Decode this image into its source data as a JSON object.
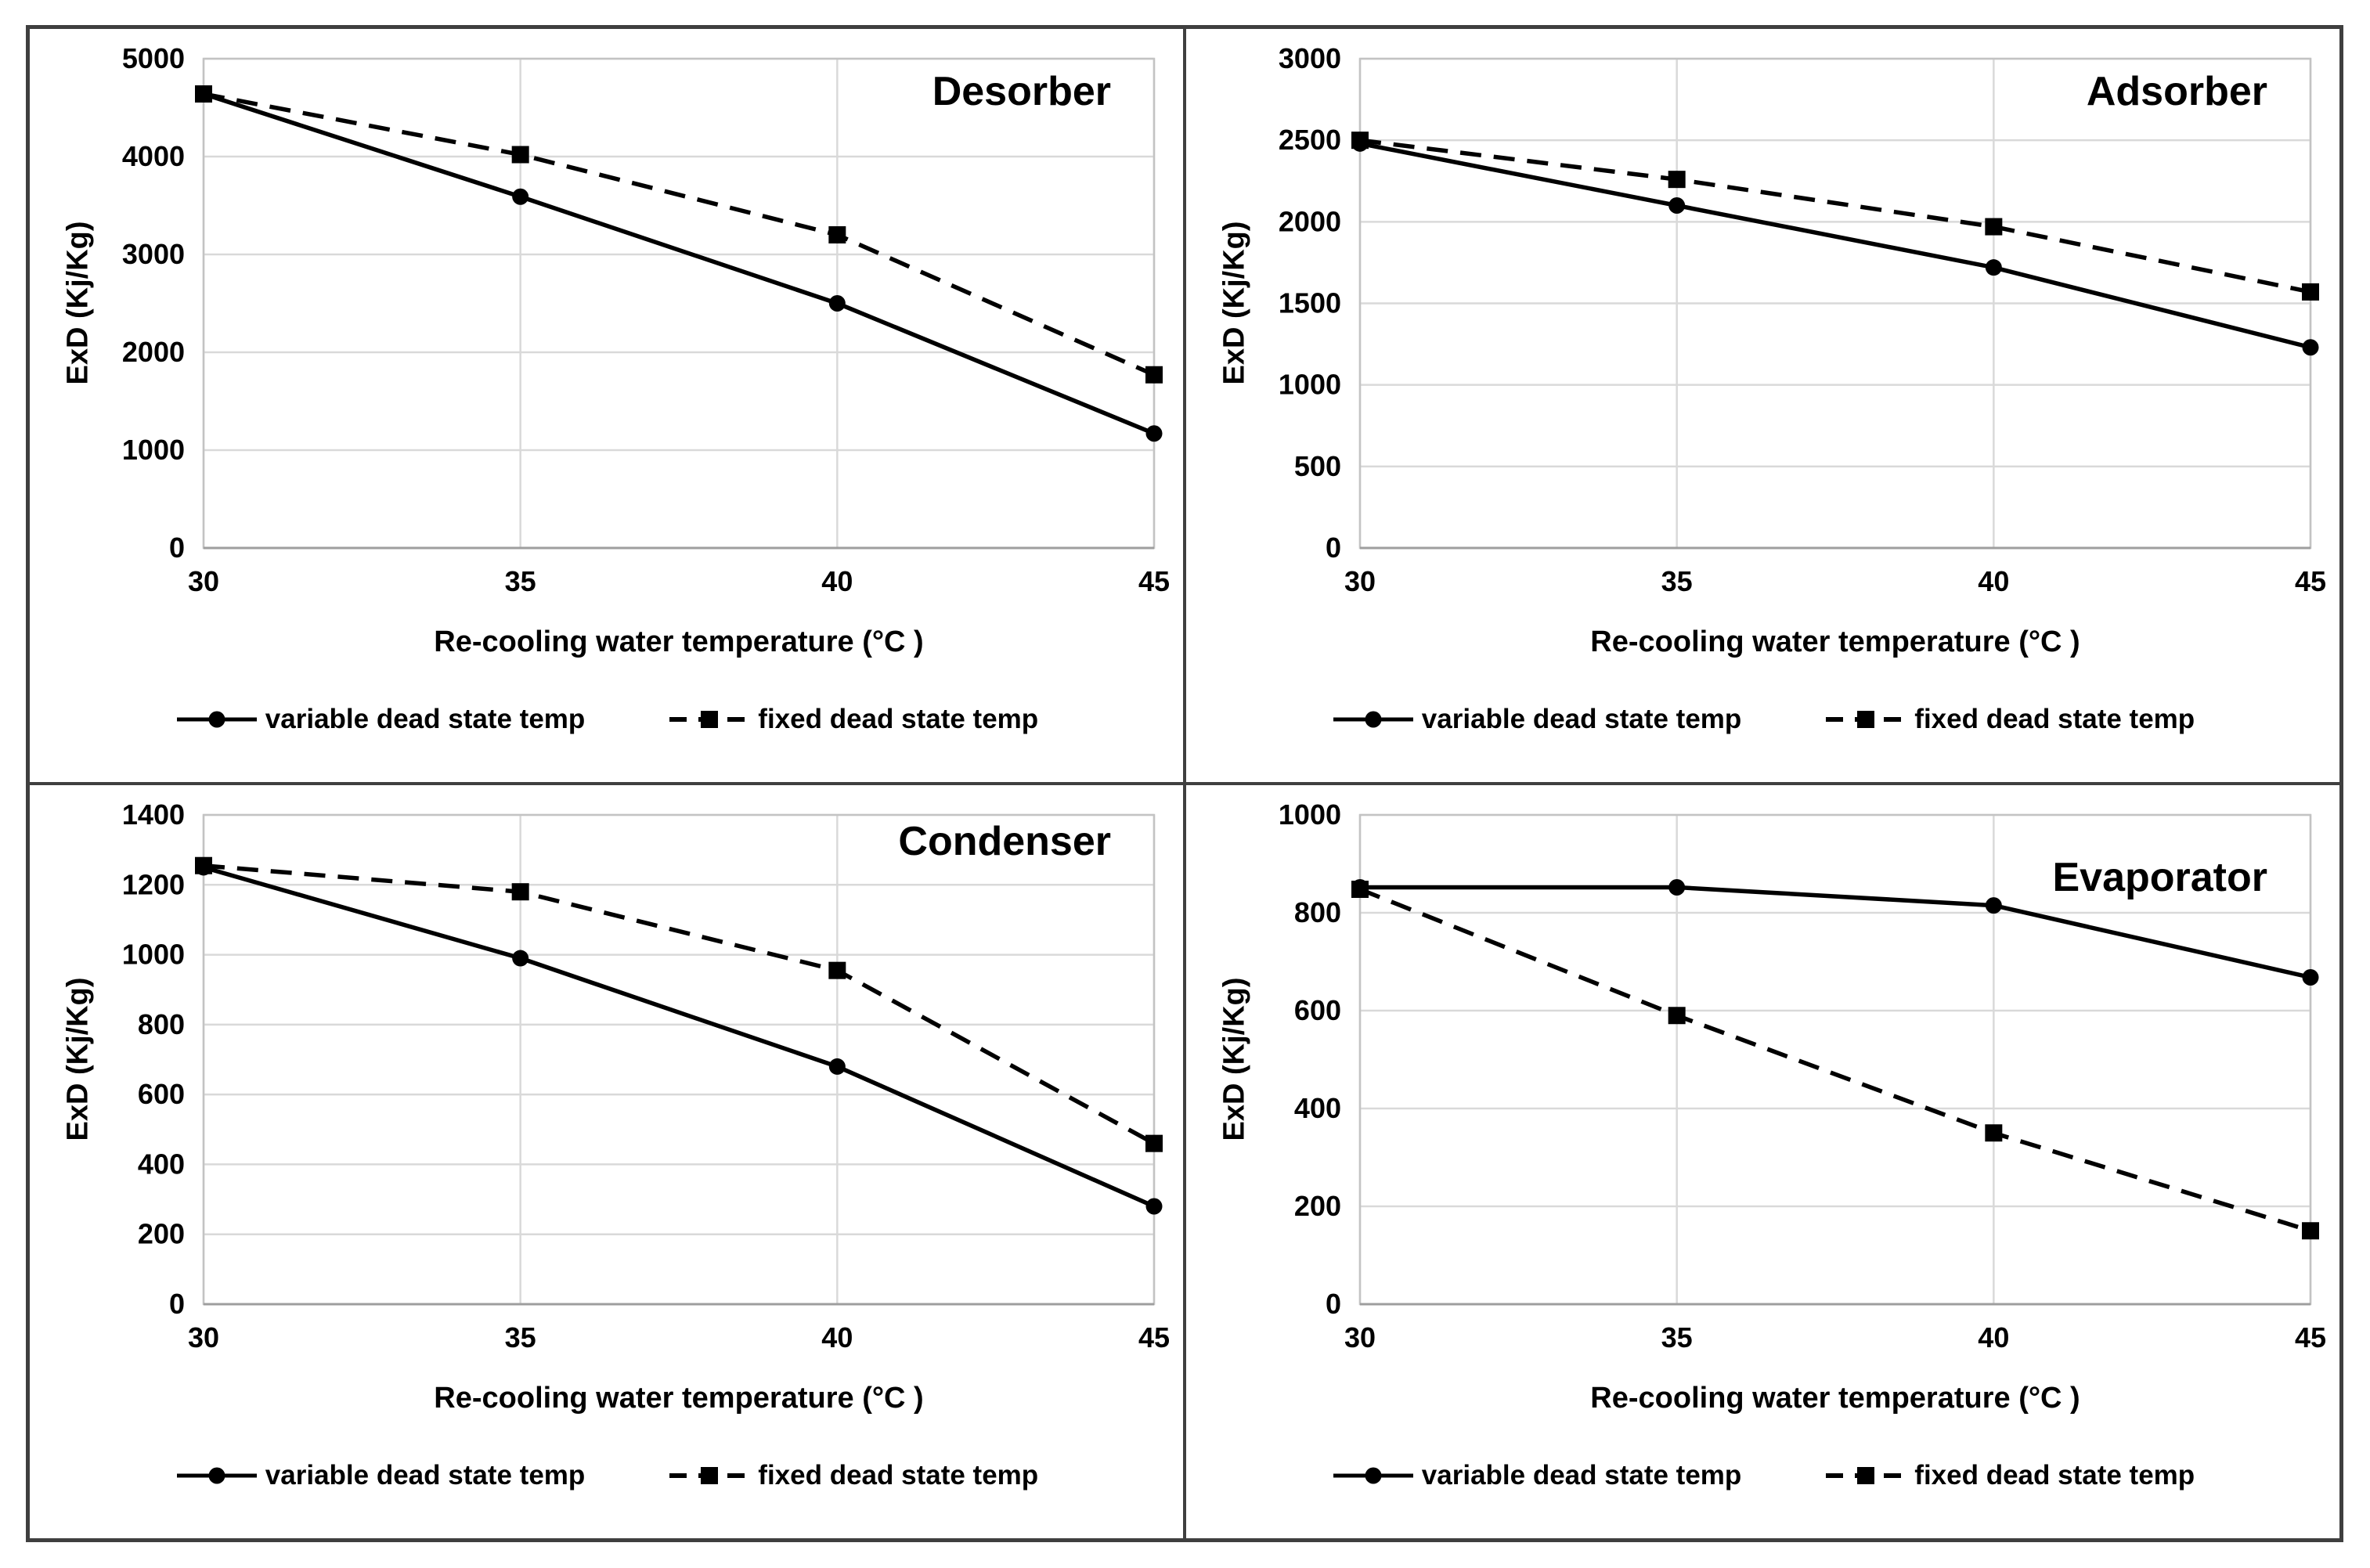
{
  "figure": {
    "x_axis_title": "Re-cooling water temperature (°C )",
    "y_axis_title": "ExD (Kj/Kg)",
    "legend": {
      "variable_label": "variable dead state temp",
      "fixed_label": "fixed dead state temp"
    },
    "colors": {
      "series_line": "#000000",
      "gridline": "#d9d9d9",
      "plot_border": "#c3c3c3",
      "axis_line": "#9e9e9e",
      "frame_border": "#3f3f3f",
      "text": "#000000",
      "background": "#ffffff"
    }
  },
  "chart_data": [
    {
      "type": "line",
      "title": "Desorber",
      "xlabel": "Re-cooling water temperature (°C )",
      "ylabel": "ExD (Kj/Kg)",
      "categories": [
        30,
        35,
        40,
        45
      ],
      "ylim": [
        0,
        5000
      ],
      "y_ticks": [
        0,
        1000,
        2000,
        3000,
        4000,
        5000
      ],
      "grid": true,
      "legend_position": "bottom",
      "series": [
        {
          "name": "variable dead state temp",
          "style": "solid",
          "marker": "circle",
          "values": [
            4640,
            3590,
            2500,
            1170
          ]
        },
        {
          "name": "fixed dead state temp",
          "style": "dashed",
          "marker": "square",
          "values": [
            4640,
            4020,
            3200,
            1770
          ]
        }
      ]
    },
    {
      "type": "line",
      "title": "Adsorber",
      "xlabel": "Re-cooling water temperature (°C )",
      "ylabel": "ExD (Kj/Kg)",
      "categories": [
        30,
        35,
        40,
        45
      ],
      "ylim": [
        0,
        3000
      ],
      "y_ticks": [
        0,
        500,
        1000,
        1500,
        2000,
        2500,
        3000
      ],
      "grid": true,
      "legend_position": "bottom",
      "series": [
        {
          "name": "variable dead state temp",
          "style": "solid",
          "marker": "circle",
          "values": [
            2480,
            2100,
            1720,
            1230
          ]
        },
        {
          "name": "fixed dead state temp",
          "style": "dashed",
          "marker": "square",
          "values": [
            2500,
            2260,
            1970,
            1570
          ]
        }
      ]
    },
    {
      "type": "line",
      "title": "Condenser",
      "xlabel": "Re-cooling water temperature (°C )",
      "ylabel": "ExD (Kj/Kg)",
      "categories": [
        30,
        35,
        40,
        45
      ],
      "ylim": [
        0,
        1400
      ],
      "y_ticks": [
        0,
        200,
        400,
        600,
        800,
        1000,
        1200,
        1400
      ],
      "grid": true,
      "legend_position": "bottom",
      "series": [
        {
          "name": "variable dead state temp",
          "style": "solid",
          "marker": "circle",
          "values": [
            1250,
            990,
            680,
            280
          ]
        },
        {
          "name": "fixed dead state temp",
          "style": "dashed",
          "marker": "square",
          "values": [
            1255,
            1180,
            955,
            460
          ]
        }
      ]
    },
    {
      "type": "line",
      "title": "Evaporator",
      "xlabel": "Re-cooling water temperature (°C )",
      "ylabel": "ExD (Kj/Kg)",
      "categories": [
        30,
        35,
        40,
        45
      ],
      "ylim": [
        0,
        1000
      ],
      "y_ticks": [
        0,
        200,
        400,
        600,
        800,
        1000
      ],
      "grid": true,
      "legend_position": "bottom",
      "series": [
        {
          "name": "variable dead state temp",
          "style": "solid",
          "marker": "circle",
          "values": [
            852,
            852,
            815,
            668
          ]
        },
        {
          "name": "fixed dead state temp",
          "style": "dashed",
          "marker": "square",
          "values": [
            848,
            590,
            350,
            150
          ]
        }
      ]
    }
  ]
}
